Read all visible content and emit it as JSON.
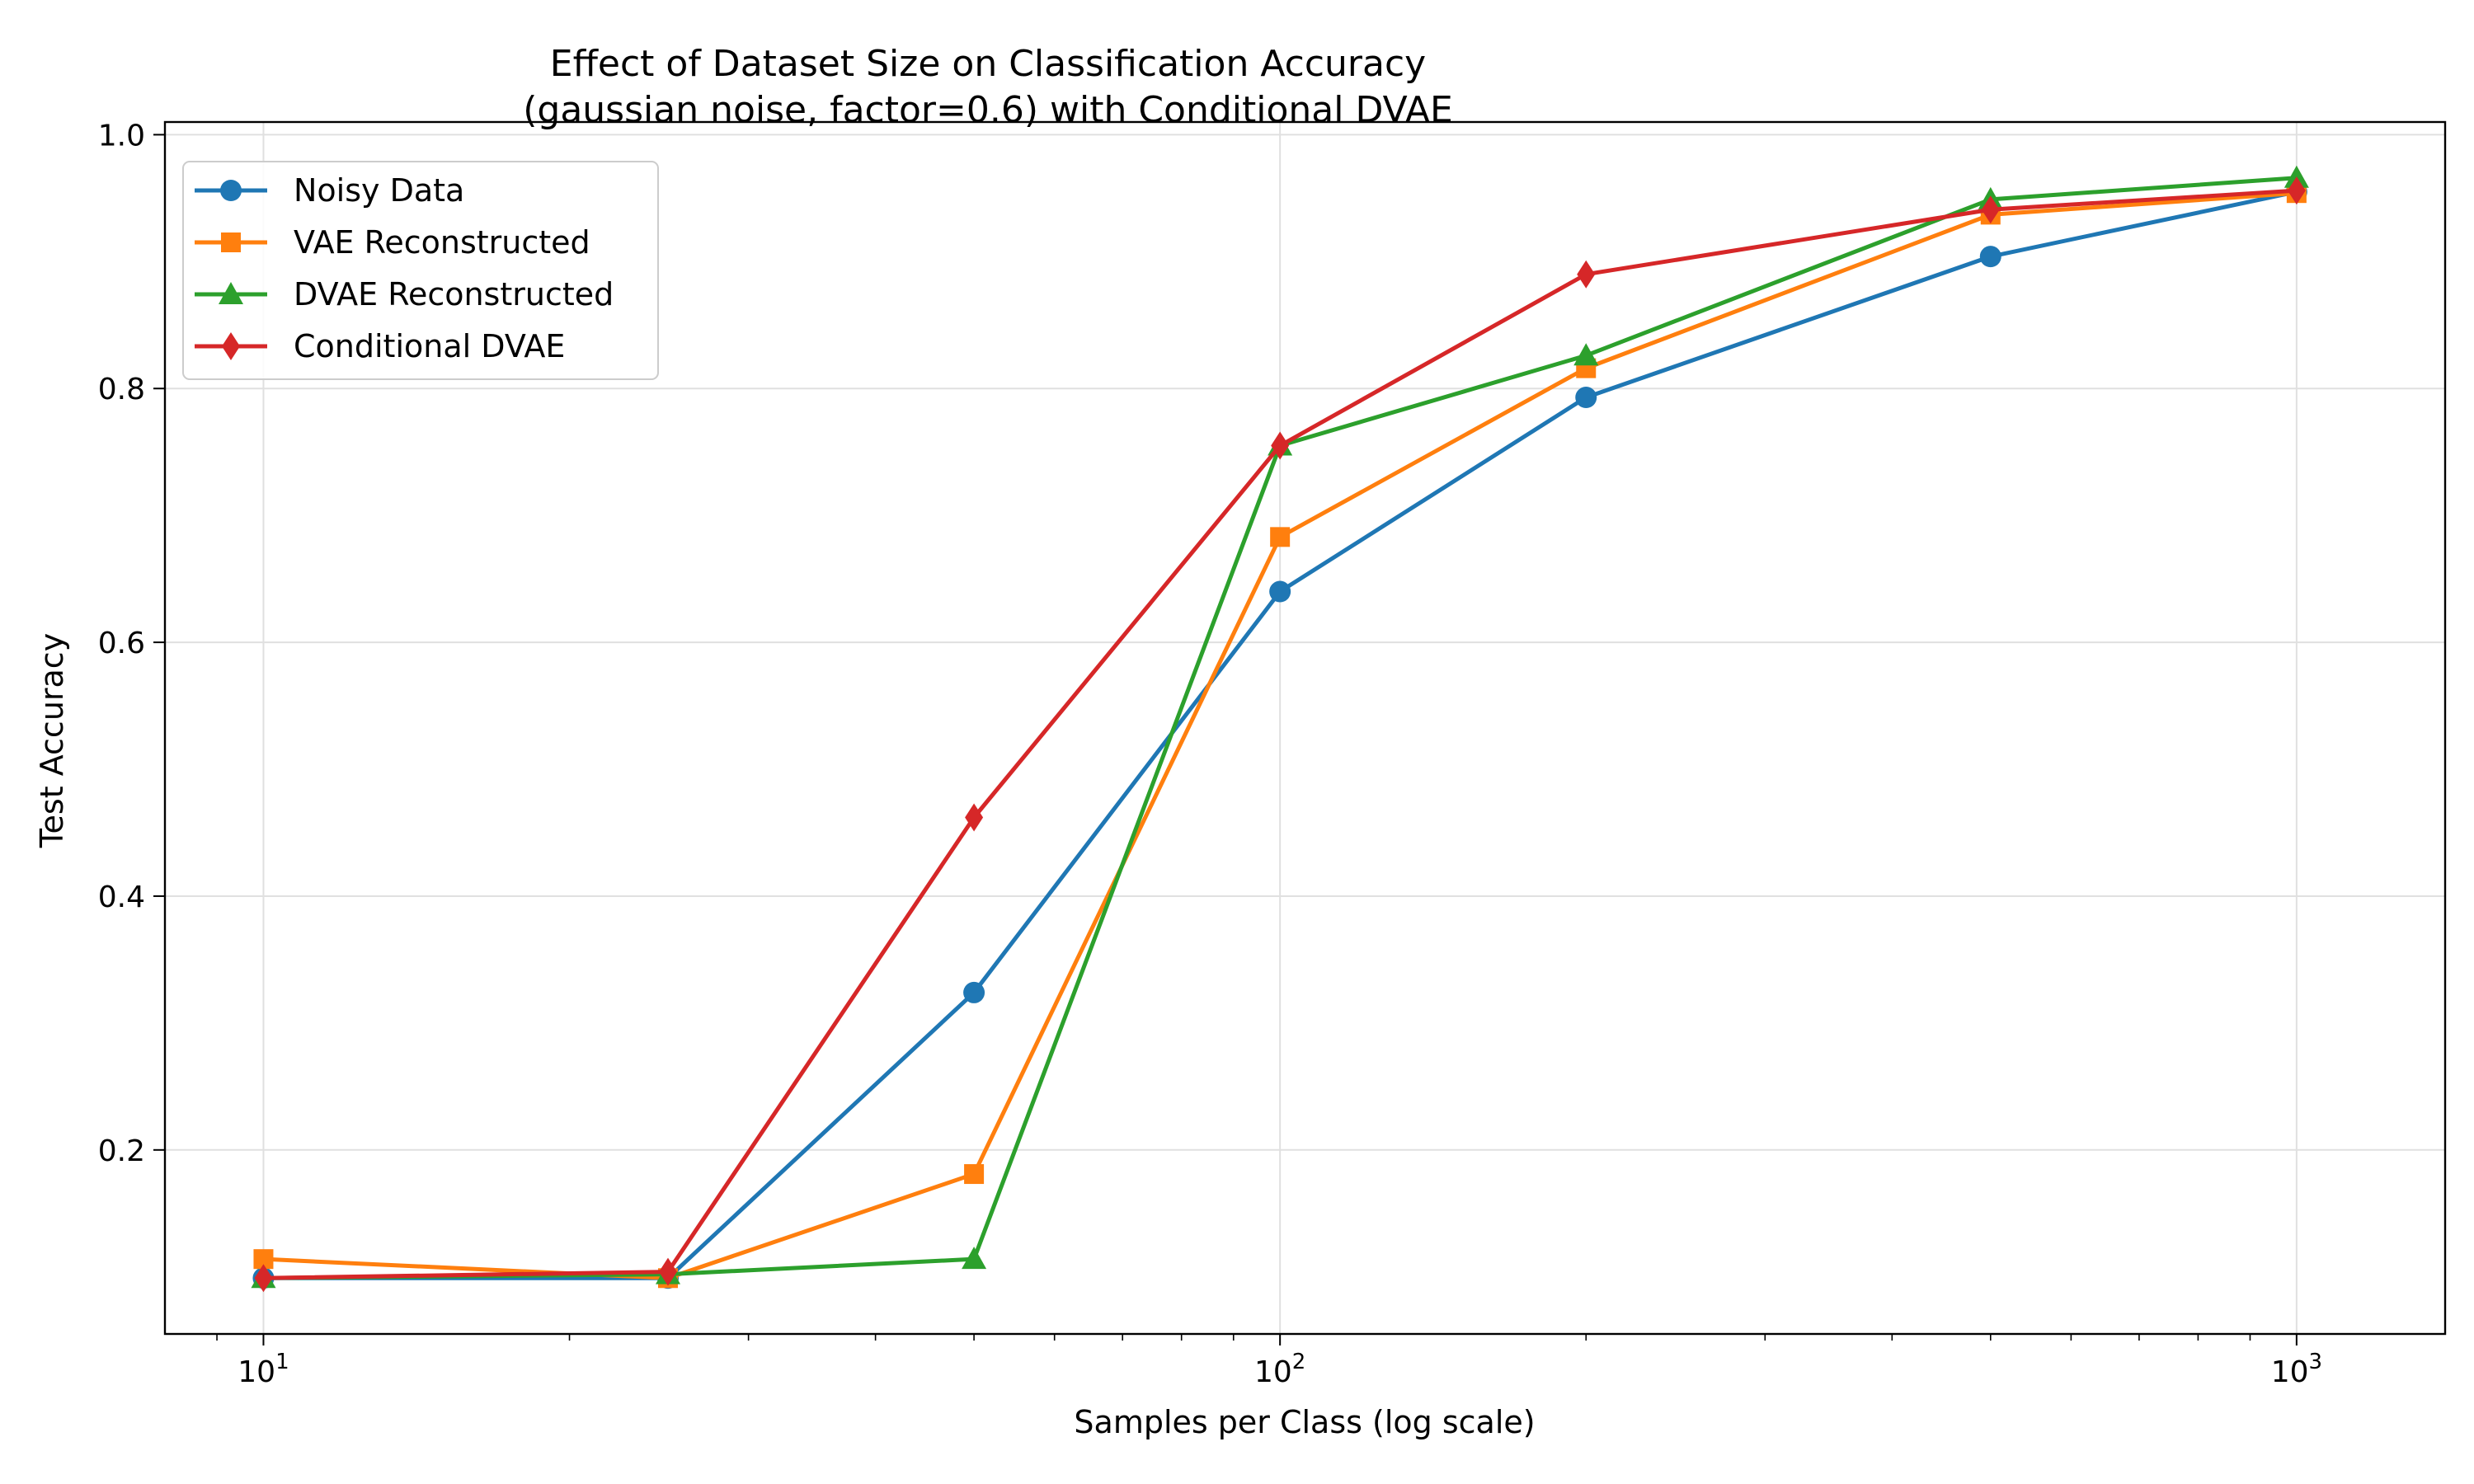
{
  "chart_data": {
    "type": "line",
    "title": "Effect of Dataset Size on Classification Accuracy",
    "subtitle": "(gaussian noise, factor=0.6) with Conditional DVAE",
    "xlabel": "Samples per Class (log scale)",
    "ylabel": "Test Accuracy",
    "xscale": "log",
    "xlim": [
      8,
      1400
    ],
    "ylim": [
      0.055,
      1.01
    ],
    "x": [
      10,
      25,
      50,
      100,
      200,
      500,
      1000
    ],
    "xticks": [
      {
        "value": 10,
        "base": "10",
        "exp": "1"
      },
      {
        "value": 100,
        "base": "10",
        "exp": "2"
      },
      {
        "value": 1000,
        "base": "10",
        "exp": "3"
      }
    ],
    "yticks": [
      {
        "value": 0.2,
        "label": "0.2"
      },
      {
        "value": 0.4,
        "label": "0.4"
      },
      {
        "value": 0.6,
        "label": "0.6"
      },
      {
        "value": 0.8,
        "label": "0.8"
      },
      {
        "value": 1.0,
        "label": "1.0"
      }
    ],
    "grid": true,
    "legend_position": "top-left",
    "series": [
      {
        "name": "Noisy Data",
        "color": "#1f77b4",
        "marker": "circle",
        "values": [
          0.099,
          0.099,
          0.324,
          0.64,
          0.793,
          0.904,
          0.955
        ]
      },
      {
        "name": "VAE Reconstructed",
        "color": "#ff7f0e",
        "marker": "square",
        "values": [
          0.114,
          0.099,
          0.181,
          0.683,
          0.816,
          0.937,
          0.954
        ]
      },
      {
        "name": "DVAE Reconstructed",
        "color": "#2ca02c",
        "marker": "triangle",
        "values": [
          0.099,
          0.102,
          0.114,
          0.755,
          0.826,
          0.949,
          0.966
        ]
      },
      {
        "name": "Conditional DVAE",
        "color": "#d62728",
        "marker": "diamond",
        "values": [
          0.099,
          0.104,
          0.462,
          0.755,
          0.89,
          0.941,
          0.956
        ]
      }
    ]
  }
}
